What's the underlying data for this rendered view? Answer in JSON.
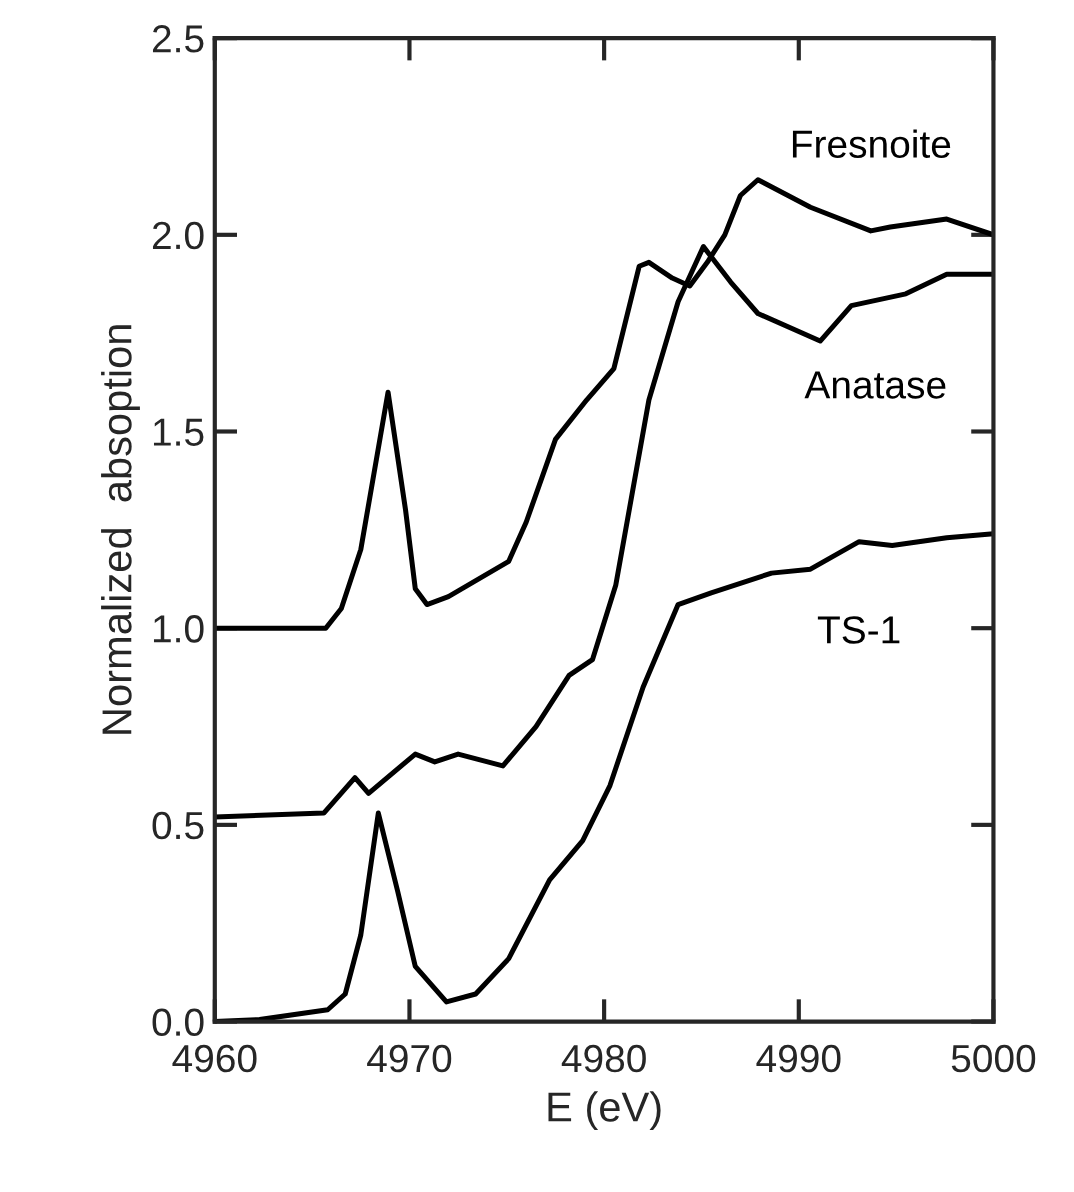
{
  "chart_data": {
    "type": "line",
    "xlabel": "E (eV)",
    "ylabel": "Normalized  absoption",
    "xlim": [
      4960,
      5000
    ],
    "xticks": [
      4960,
      4970,
      4980,
      4990,
      5000
    ],
    "ylim": [
      0,
      2.5
    ],
    "yticks": [
      {
        "value": 0,
        "label": "0.0"
      },
      0.5,
      {
        "value": 1,
        "label": "1.0"
      },
      1.5,
      {
        "value": 2,
        "label": "2.0"
      },
      2.5
    ],
    "grid": false,
    "marker": "none",
    "line_style": "solid",
    "series": [
      {
        "name": "Fresnoite",
        "color": "#000000",
        "x": [
          4960,
          4965.7,
          4966.5,
          4967.5,
          4968.9,
          4969.8,
          4970.3,
          4970.9,
          4972,
          4975.1,
          4976,
          4977.5,
          4979.1,
          4980.5,
          4981.8,
          4982.3,
          4983.5,
          4984.4,
          4985.3,
          4986.2,
          4987,
          4987.9,
          4990.6,
          4993.7,
          4994.7,
          4997.6,
          5000
        ],
        "values": [
          1.0,
          1.0,
          1.05,
          1.2,
          1.6,
          1.3,
          1.1,
          1.06,
          1.08,
          1.17,
          1.27,
          1.48,
          1.58,
          1.66,
          1.92,
          1.93,
          1.89,
          1.87,
          1.93,
          2.0,
          2.1,
          2.14,
          2.07,
          2.01,
          2.02,
          2.04,
          2.0
        ]
      },
      {
        "name": "Anatase",
        "color": "#000000",
        "x": [
          4960,
          4965.6,
          4967.2,
          4967.9,
          4970.3,
          4971.3,
          4972.5,
          4974.8,
          4976.5,
          4978.2,
          4979.4,
          4980.6,
          4982.3,
          4983.8,
          4985.1,
          4986.5,
          4987.9,
          4991.1,
          4992.7,
          4995.5,
          4997.6,
          5000
        ],
        "values": [
          0.52,
          0.53,
          0.62,
          0.58,
          0.68,
          0.66,
          0.68,
          0.65,
          0.75,
          0.88,
          0.92,
          1.11,
          1.58,
          1.83,
          1.97,
          1.88,
          1.8,
          1.73,
          1.82,
          1.85,
          1.9,
          1.9
        ]
      },
      {
        "name": "TS-1",
        "color": "#000000",
        "x": [
          4960,
          4962.3,
          4965.8,
          4966.7,
          4967.5,
          4968.4,
          4969.4,
          4970.3,
          4971.9,
          4973.4,
          4975.1,
          4977.2,
          4978.9,
          4980.3,
          4982.0,
          4983.8,
          4985.5,
          4988.6,
          4990.6,
          4993.1,
          4994.8,
          4997.6,
          5000
        ],
        "values": [
          0.0,
          0.005,
          0.03,
          0.07,
          0.22,
          0.53,
          0.33,
          0.14,
          0.05,
          0.07,
          0.16,
          0.36,
          0.46,
          0.6,
          0.85,
          1.06,
          1.09,
          1.14,
          1.15,
          1.22,
          1.21,
          1.23,
          1.24
        ]
      }
    ]
  }
}
